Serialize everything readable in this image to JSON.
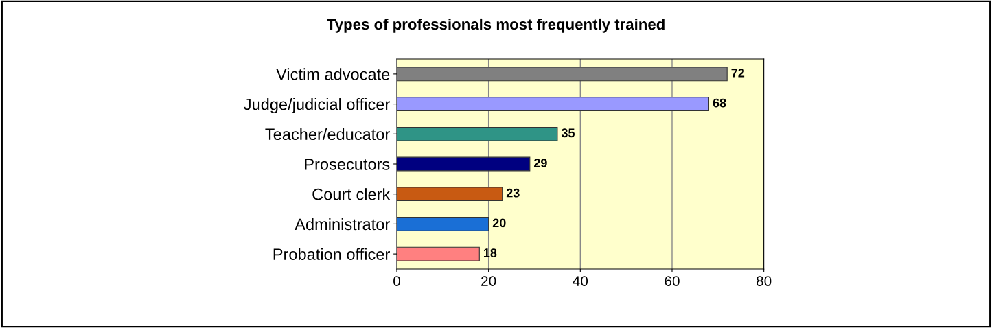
{
  "chart_data": {
    "type": "bar",
    "orientation": "horizontal",
    "title": "Types of professionals most frequently trained",
    "categories": [
      "Victim advocate",
      "Judge/judicial officer",
      "Teacher/educator",
      "Prosecutors",
      "Court clerk",
      "Administrator",
      "Probation officer"
    ],
    "values": [
      72,
      68,
      35,
      29,
      23,
      20,
      18
    ],
    "colors": [
      "#808080",
      "#9999ff",
      "#2f9486",
      "#000080",
      "#c85a12",
      "#1a6fd6",
      "#ff8080"
    ],
    "xlim": [
      0,
      80
    ],
    "xticks": [
      0,
      20,
      40,
      60,
      80
    ],
    "grid": "x",
    "data_labels": true
  }
}
